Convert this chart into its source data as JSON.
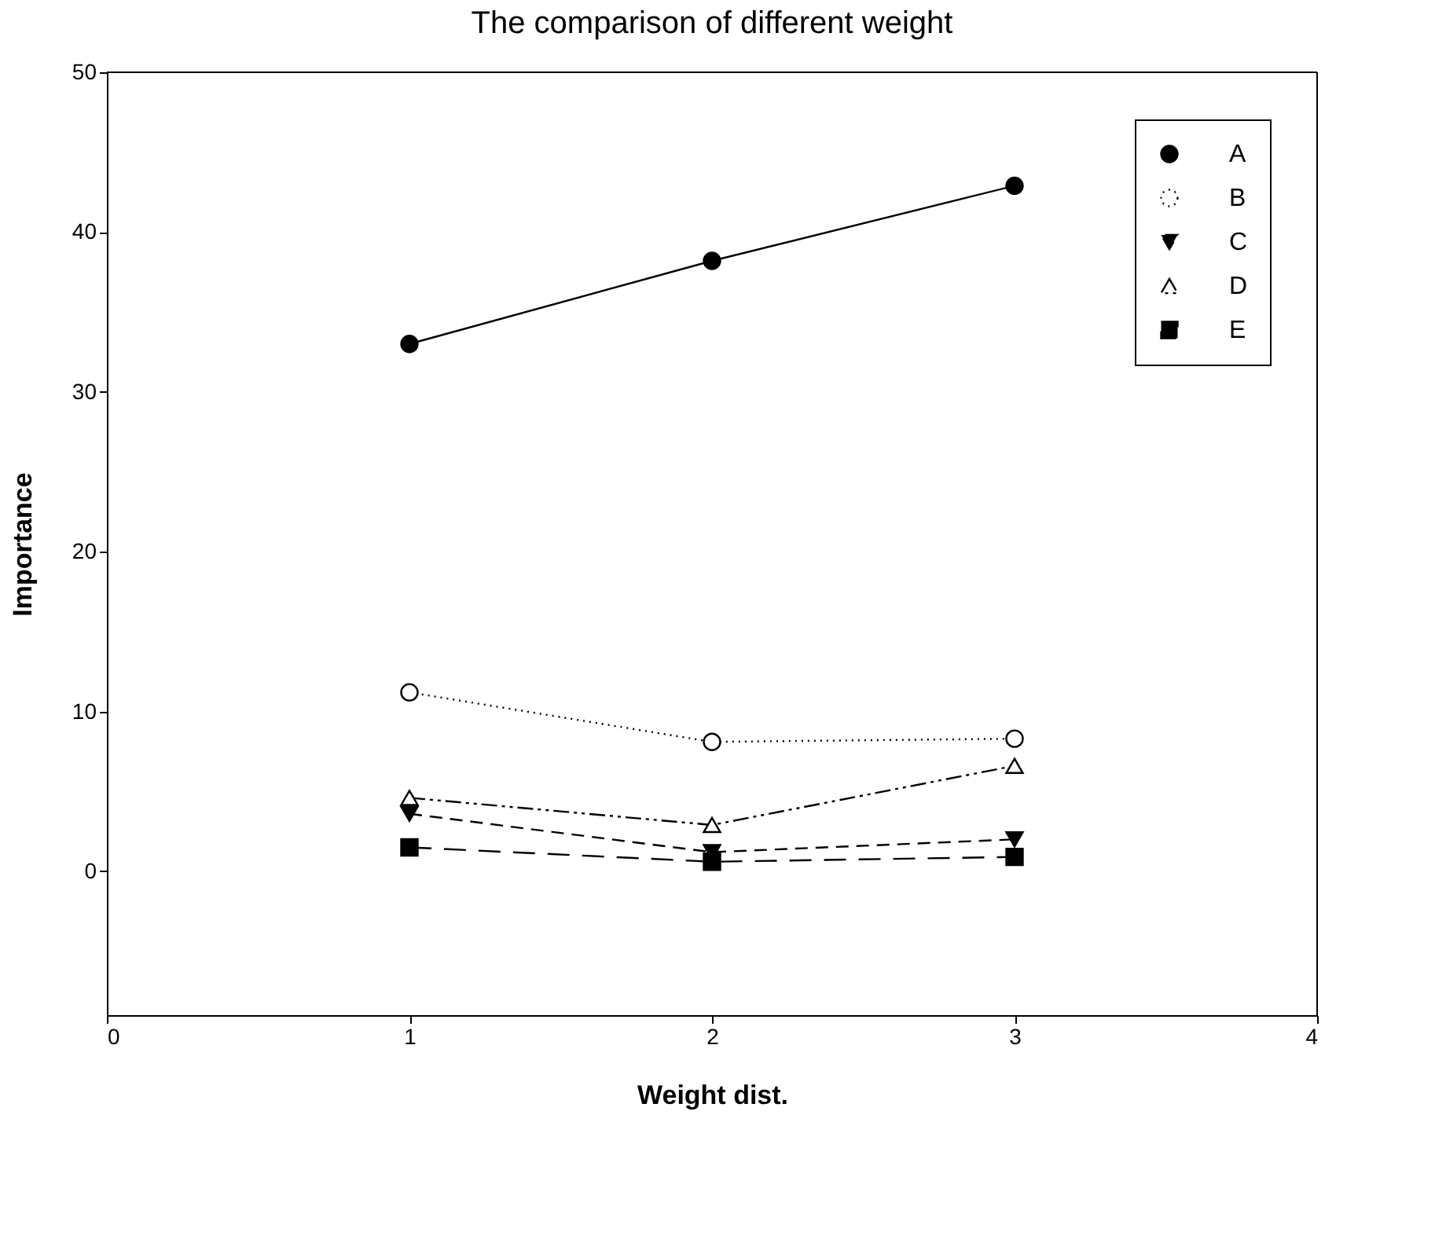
{
  "chart_data": {
    "type": "line",
    "title": "The comparison of different weight",
    "xlabel": "Weight dist.",
    "ylabel": "Importance",
    "x": [
      1,
      2,
      3
    ],
    "xlim": [
      0,
      4
    ],
    "xticks": [
      0,
      1,
      2,
      3,
      4
    ],
    "ylim": [
      -9,
      50
    ],
    "yticks": [
      0,
      10,
      20,
      30,
      40,
      50
    ],
    "grid": false,
    "legend": "top right",
    "series": [
      {
        "name": "A",
        "color": "#000000",
        "values": [
          33.0,
          38.2,
          42.9
        ],
        "marker": "circle",
        "line_style": "solid"
      },
      {
        "name": "B",
        "color": "#000000",
        "values": [
          11.2,
          8.1,
          8.3
        ],
        "marker": "circle-open",
        "line_style": "dotted"
      },
      {
        "name": "C",
        "color": "#000000",
        "values": [
          3.6,
          1.2,
          2.0
        ],
        "marker": "triangle-down",
        "line_style": "dashed"
      },
      {
        "name": "D",
        "color": "#000000",
        "values": [
          4.6,
          2.9,
          6.6
        ],
        "marker": "triangle-open",
        "line_style": "dashdot"
      },
      {
        "name": "E",
        "color": "#000000",
        "values": [
          1.5,
          0.6,
          0.9
        ],
        "marker": "square",
        "line_style": "longdash"
      }
    ]
  }
}
